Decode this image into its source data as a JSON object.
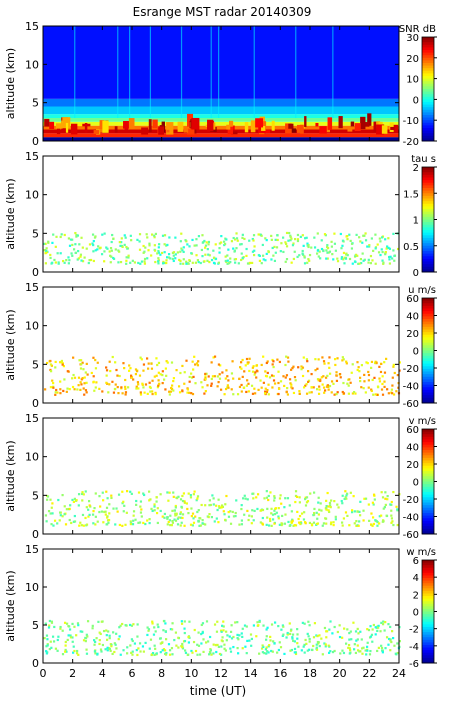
{
  "chart_data": {
    "type": "heatmap",
    "title": "Esrange MST radar 20140309",
    "xlabel": "time (UT)",
    "xlim": [
      0,
      24
    ],
    "xticks": [
      "0",
      "2",
      "4",
      "6",
      "8",
      "10",
      "12",
      "14",
      "16",
      "18",
      "20",
      "22",
      "24"
    ],
    "panels": [
      {
        "id": "snr",
        "ylabel": "altitude (km)",
        "ylim": [
          0,
          15
        ],
        "yticks": [
          "0",
          "5",
          "10",
          "15"
        ],
        "colorbar_label": "SNR dB",
        "colorbar_range": [
          -20,
          30
        ],
        "colorbar_ticks": [
          "30",
          "20",
          "10",
          "0",
          "-10",
          "-20"
        ],
        "rows_km": [
          {
            "alt": [
              0.0,
              0.5
            ],
            "value": -20
          },
          {
            "alt": [
              0.5,
              1.0
            ],
            "value": 22
          },
          {
            "alt": [
              1.0,
              1.5
            ],
            "value": 26
          },
          {
            "alt": [
              1.5,
              2.0
            ],
            "value": 18
          },
          {
            "alt": [
              2.0,
              2.5
            ],
            "value": 10
          },
          {
            "alt": [
              2.5,
              3.0
            ],
            "value": 4
          },
          {
            "alt": [
              3.0,
              3.5
            ],
            "value": 0
          },
          {
            "alt": [
              3.5,
              4.5
            ],
            "value": -4
          },
          {
            "alt": [
              4.5,
              5.5
            ],
            "value": -8
          },
          {
            "alt": [
              5.5,
              15.0
            ],
            "value": -13
          }
        ]
      },
      {
        "id": "tau",
        "ylabel": "altitude (km)",
        "ylim": [
          0,
          15
        ],
        "yticks": [
          "0",
          "5",
          "10",
          "15"
        ],
        "colorbar_label": "tau s",
        "colorbar_range": [
          0,
          2
        ],
        "colorbar_ticks": [
          "2",
          "1.5",
          "1",
          "0.5",
          "0"
        ],
        "data_alt_km": [
          1.0,
          5.0
        ],
        "typical_value": 1.0
      },
      {
        "id": "u",
        "ylabel": "altitude (km)",
        "ylim": [
          0,
          15
        ],
        "yticks": [
          "0",
          "5",
          "10",
          "15"
        ],
        "colorbar_label": "u m/s",
        "colorbar_range": [
          -60,
          60
        ],
        "colorbar_ticks": [
          "60",
          "40",
          "20",
          "0",
          "-20",
          "-40",
          "-60"
        ],
        "data_alt_km": [
          1.0,
          6.0
        ],
        "typical_value": 20
      },
      {
        "id": "v",
        "ylabel": "altitude (km)",
        "ylim": [
          0,
          15
        ],
        "yticks": [
          "0",
          "5",
          "10",
          "15"
        ],
        "colorbar_label": "v m/s",
        "colorbar_range": [
          -60,
          60
        ],
        "colorbar_ticks": [
          "60",
          "40",
          "20",
          "0",
          "-20",
          "-40",
          "-60"
        ],
        "data_alt_km": [
          1.0,
          5.5
        ],
        "typical_value": 5
      },
      {
        "id": "w",
        "ylabel": "altitude (km)",
        "ylim": [
          0,
          15
        ],
        "yticks": [
          "0",
          "5",
          "10",
          "15"
        ],
        "colorbar_label": "w m/s",
        "colorbar_range": [
          -6,
          6
        ],
        "colorbar_ticks": [
          "6",
          "4",
          "2",
          "0",
          "-2",
          "-4",
          "-6"
        ],
        "data_alt_km": [
          1.0,
          5.5
        ],
        "typical_value": 0
      }
    ],
    "colormap": [
      "#00008f",
      "#0000ff",
      "#0080ff",
      "#00ffff",
      "#80ff80",
      "#ffff00",
      "#ff8000",
      "#ff0000",
      "#800000"
    ]
  }
}
